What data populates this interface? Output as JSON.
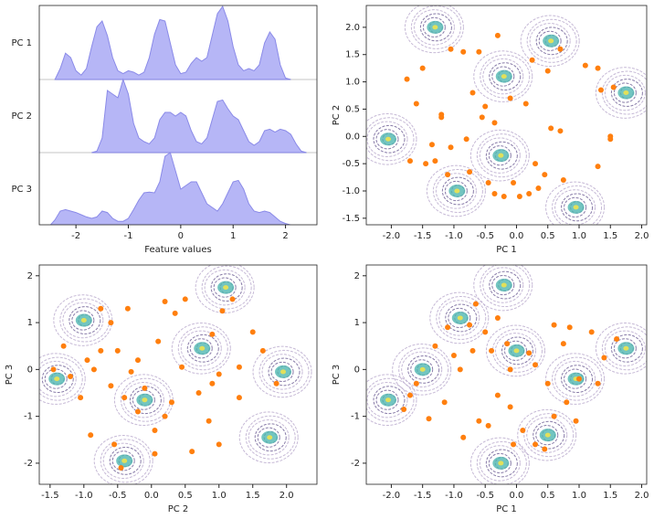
{
  "chart_data": [
    {
      "type": "ridgeline",
      "xlabel": "Feature values",
      "xlim": [
        -2.7,
        2.6
      ],
      "xticks": [
        -2,
        -1,
        0,
        1,
        2
      ],
      "x": [
        -2.5,
        -2.4,
        -2.3,
        -2.2,
        -2.1,
        -2.0,
        -1.9,
        -1.8,
        -1.7,
        -1.6,
        -1.5,
        -1.4,
        -1.3,
        -1.2,
        -1.1,
        -1.0,
        -0.9,
        -0.8,
        -0.7,
        -0.6,
        -0.5,
        -0.4,
        -0.3,
        -0.2,
        -0.1,
        0.0,
        0.1,
        0.2,
        0.3,
        0.4,
        0.5,
        0.6,
        0.7,
        0.8,
        0.9,
        1.0,
        1.1,
        1.2,
        1.3,
        1.4,
        1.5,
        1.6,
        1.7,
        1.8,
        1.9,
        2.0,
        2.1,
        2.2,
        2.3,
        2.4
      ],
      "series": [
        {
          "name": "PC 1",
          "color": "#a9a9f5",
          "values": [
            null,
            0,
            0.15,
            0.36,
            0.3,
            0.12,
            0.06,
            0.15,
            0.45,
            0.72,
            0.8,
            0.6,
            0.3,
            0.12,
            0.08,
            0.12,
            0.1,
            0.06,
            0.1,
            0.3,
            0.62,
            0.82,
            0.8,
            0.5,
            0.2,
            0.08,
            0.1,
            0.22,
            0.3,
            0.25,
            0.3,
            0.6,
            0.9,
            1.0,
            0.8,
            0.45,
            0.2,
            0.12,
            0.15,
            0.12,
            0.2,
            0.5,
            0.65,
            0.55,
            0.2,
            0.02,
            0,
            null,
            null,
            null
          ]
        },
        {
          "name": "PC 2",
          "color": "#a9a9f5",
          "values": [
            null,
            null,
            null,
            null,
            null,
            null,
            null,
            null,
            0,
            0.02,
            0.2,
            0.85,
            0.8,
            0.75,
            1.0,
            0.8,
            0.4,
            0.2,
            0.15,
            0.12,
            0.2,
            0.45,
            0.55,
            0.55,
            0.5,
            0.55,
            0.5,
            0.3,
            0.15,
            0.12,
            0.2,
            0.45,
            0.7,
            0.72,
            0.6,
            0.5,
            0.45,
            0.3,
            0.15,
            0.1,
            0.15,
            0.3,
            0.32,
            0.28,
            0.32,
            0.3,
            0.25,
            0.12,
            0.02,
            0
          ]
        },
        {
          "name": "PC 3",
          "color": "#a9a9f5",
          "values": [
            0,
            0.08,
            0.2,
            0.22,
            0.2,
            0.18,
            0.15,
            0.12,
            0.1,
            0.12,
            0.2,
            0.18,
            0.1,
            0.06,
            0.06,
            0.1,
            0.22,
            0.35,
            0.45,
            0.46,
            0.45,
            0.6,
            0.95,
            1.0,
            0.75,
            0.5,
            0.55,
            0.6,
            0.6,
            0.45,
            0.3,
            0.25,
            0.2,
            0.3,
            0.45,
            0.6,
            0.62,
            0.5,
            0.3,
            0.2,
            0.18,
            0.2,
            0.18,
            0.12,
            0.06,
            0.03,
            0.01,
            0,
            null,
            null
          ]
        }
      ]
    },
    {
      "type": "scatter",
      "xlabel": "PC 1",
      "ylabel": "PC 2",
      "color": "#ff7f0e",
      "xlim": [
        -2.4,
        2.08
      ],
      "ylim": [
        -1.62,
        2.4
      ],
      "xticks": [
        {
          "value": -2,
          "label": "-2.0"
        },
        {
          "value": -1.5,
          "label": "-1.5"
        },
        {
          "value": -1,
          "label": "-1.0"
        },
        {
          "value": -0.5,
          "label": "-0.5"
        },
        {
          "value": 0,
          "label": "0.0"
        },
        {
          "value": 0.5,
          "label": "0.5"
        },
        {
          "value": 1,
          "label": "1.0"
        },
        {
          "value": 1.5,
          "label": "1.5"
        },
        {
          "value": 2,
          "label": "2.0"
        }
      ],
      "yticks": [
        {
          "value": -1.5,
          "label": "-1.5"
        },
        {
          "value": -1,
          "label": "-1.0"
        },
        {
          "value": -0.5,
          "label": "-0.5"
        },
        {
          "value": 0,
          "label": "0.0"
        },
        {
          "value": 0.5,
          "label": "0.5"
        },
        {
          "value": 1,
          "label": "1.0"
        },
        {
          "value": 1.5,
          "label": "1.5"
        },
        {
          "value": 2,
          "label": "2.0"
        }
      ],
      "density": {
        "x": [
          -1.3,
          0.55,
          -0.2,
          1.75,
          -2.05,
          -0.25,
          -0.95,
          0.95
        ],
        "y": [
          2.0,
          1.75,
          1.1,
          0.8,
          -0.05,
          -0.35,
          -1.0,
          -1.3
        ]
      },
      "x": [
        -1.75,
        -1.6,
        -1.5,
        -1.2,
        -1.2,
        -1.05,
        -0.85,
        -0.6,
        -0.3,
        -0.1,
        0.25,
        0.5,
        0.7,
        1.1,
        1.3,
        1.35,
        1.55,
        -0.7,
        -0.5,
        0.15,
        -0.55,
        -0.35,
        0.55,
        0.7,
        1.5,
        -1.7,
        -1.35,
        -1.3,
        -1.05,
        -0.8,
        -0.75,
        -0.45,
        -0.35,
        -0.2,
        0.05,
        0.2,
        0.35,
        0.45,
        0.75,
        1.3,
        1.5,
        -1.45,
        -1.1,
        0.3,
        -0.05
      ],
      "y": [
        1.05,
        0.6,
        1.25,
        0.4,
        0.35,
        1.6,
        1.55,
        1.55,
        1.85,
        0.7,
        1.4,
        1.2,
        1.6,
        1.3,
        1.25,
        0.85,
        0.9,
        0.8,
        0.55,
        0.6,
        0.35,
        0.25,
        0.15,
        0.1,
        0.0,
        -0.45,
        -0.15,
        -0.45,
        -0.2,
        -0.05,
        -0.65,
        -0.85,
        -1.05,
        -1.1,
        -1.1,
        -1.05,
        -0.95,
        -0.7,
        -0.8,
        -0.55,
        -0.05,
        -0.5,
        -0.7,
        -0.5,
        -0.85
      ]
    },
    {
      "type": "scatter",
      "xlabel": "PC 2",
      "ylabel": "PC 3",
      "color": "#ff7f0e",
      "xlim": [
        -1.66,
        2.45
      ],
      "ylim": [
        -2.45,
        2.23
      ],
      "xticks": [
        {
          "value": -1.5,
          "label": "-1.5"
        },
        {
          "value": -1,
          "label": "-1.0"
        },
        {
          "value": -0.5,
          "label": "-0.5"
        },
        {
          "value": 0,
          "label": "0.0"
        },
        {
          "value": 0.5,
          "label": "0.5"
        },
        {
          "value": 1,
          "label": "1.0"
        },
        {
          "value": 1.5,
          "label": "1.5"
        },
        {
          "value": 2,
          "label": "2.0"
        }
      ],
      "yticks": [
        -2,
        -1,
        0,
        1,
        2
      ],
      "density": {
        "x": [
          -1.4,
          -1.0,
          1.1,
          0.75,
          -0.1,
          1.95,
          1.75,
          -0.4
        ],
        "y": [
          -0.2,
          1.05,
          1.75,
          0.45,
          -0.65,
          -0.05,
          -1.45,
          -1.95
        ]
      },
      "x": [
        -1.3,
        -1.05,
        -0.85,
        -0.75,
        -0.6,
        -0.35,
        -0.2,
        -0.3,
        -0.5,
        -0.75,
        -0.9,
        -0.6,
        -0.4,
        0.1,
        0.05,
        0.2,
        0.3,
        0.05,
        0.6,
        0.85,
        1.0,
        0.9,
        1.0,
        1.3,
        1.3,
        1.5,
        1.65,
        1.85,
        0.35,
        0.5,
        0.9,
        1.05,
        1.2,
        0.2,
        -1.2,
        -1.45,
        -0.95,
        -0.1,
        -0.2,
        -0.55,
        -0.45,
        0.45,
        0.7
      ],
      "y": [
        0.5,
        -0.6,
        0.0,
        1.3,
        1.0,
        1.3,
        0.2,
        -0.05,
        0.4,
        0.4,
        -1.4,
        -0.35,
        -0.6,
        0.6,
        -1.3,
        -1.0,
        -0.7,
        -1.8,
        -1.75,
        -1.1,
        -1.6,
        -0.3,
        -0.1,
        0.05,
        -0.6,
        0.8,
        0.4,
        -0.3,
        1.2,
        1.5,
        0.75,
        1.25,
        1.5,
        1.45,
        -0.15,
        0.0,
        0.2,
        -0.4,
        -0.9,
        -1.6,
        -2.1,
        0.05,
        -0.5
      ]
    },
    {
      "type": "scatter",
      "xlabel": "PC 1",
      "ylabel": "PC 3",
      "color": "#ff7f0e",
      "xlim": [
        -2.4,
        2.08
      ],
      "ylim": [
        -2.45,
        2.23
      ],
      "xticks": [
        {
          "value": -2,
          "label": "-2.0"
        },
        {
          "value": -1.5,
          "label": "-1.5"
        },
        {
          "value": -1,
          "label": "-1.0"
        },
        {
          "value": -0.5,
          "label": "-0.5"
        },
        {
          "value": 0,
          "label": "0.0"
        },
        {
          "value": 0.5,
          "label": "0.5"
        },
        {
          "value": 1,
          "label": "1.0"
        },
        {
          "value": 1.5,
          "label": "1.5"
        },
        {
          "value": 2,
          "label": "2.0"
        }
      ],
      "yticks": [
        -2,
        -1,
        0,
        1,
        2
      ],
      "density": {
        "x": [
          -0.2,
          -0.9,
          -1.5,
          -2.05,
          0.0,
          0.95,
          1.75,
          0.5,
          -0.25
        ],
        "y": [
          1.8,
          1.1,
          0.0,
          -0.65,
          0.4,
          -0.2,
          0.45,
          -1.4,
          -2.0
        ]
      },
      "x": [
        -1.7,
        -1.6,
        -1.3,
        -1.15,
        -1.0,
        -0.9,
        -0.7,
        -0.4,
        -0.5,
        -0.65,
        -0.3,
        -0.1,
        -0.3,
        -0.1,
        -0.6,
        -0.45,
        0.1,
        0.3,
        0.6,
        0.8,
        0.95,
        0.5,
        0.3,
        0.6,
        0.75,
        1.2,
        1.4,
        1.6,
        1.3,
        0.85,
        -1.8,
        -1.4,
        -0.85,
        -0.05,
        0.2,
        -0.15,
        0.45,
        1.0,
        -1.1,
        -0.75
      ],
      "y": [
        -0.55,
        -0.3,
        0.5,
        -0.7,
        0.3,
        0.0,
        0.4,
        0.4,
        0.8,
        1.4,
        1.1,
        0.0,
        -0.55,
        -0.8,
        -1.1,
        -1.2,
        -1.3,
        -1.6,
        -1.0,
        -0.7,
        -1.1,
        -0.3,
        0.1,
        0.95,
        0.55,
        0.8,
        0.25,
        0.65,
        -0.3,
        0.9,
        -0.85,
        -1.05,
        -1.45,
        -1.6,
        0.35,
        0.55,
        -1.7,
        -0.2,
        0.9,
        0.95
      ]
    }
  ]
}
